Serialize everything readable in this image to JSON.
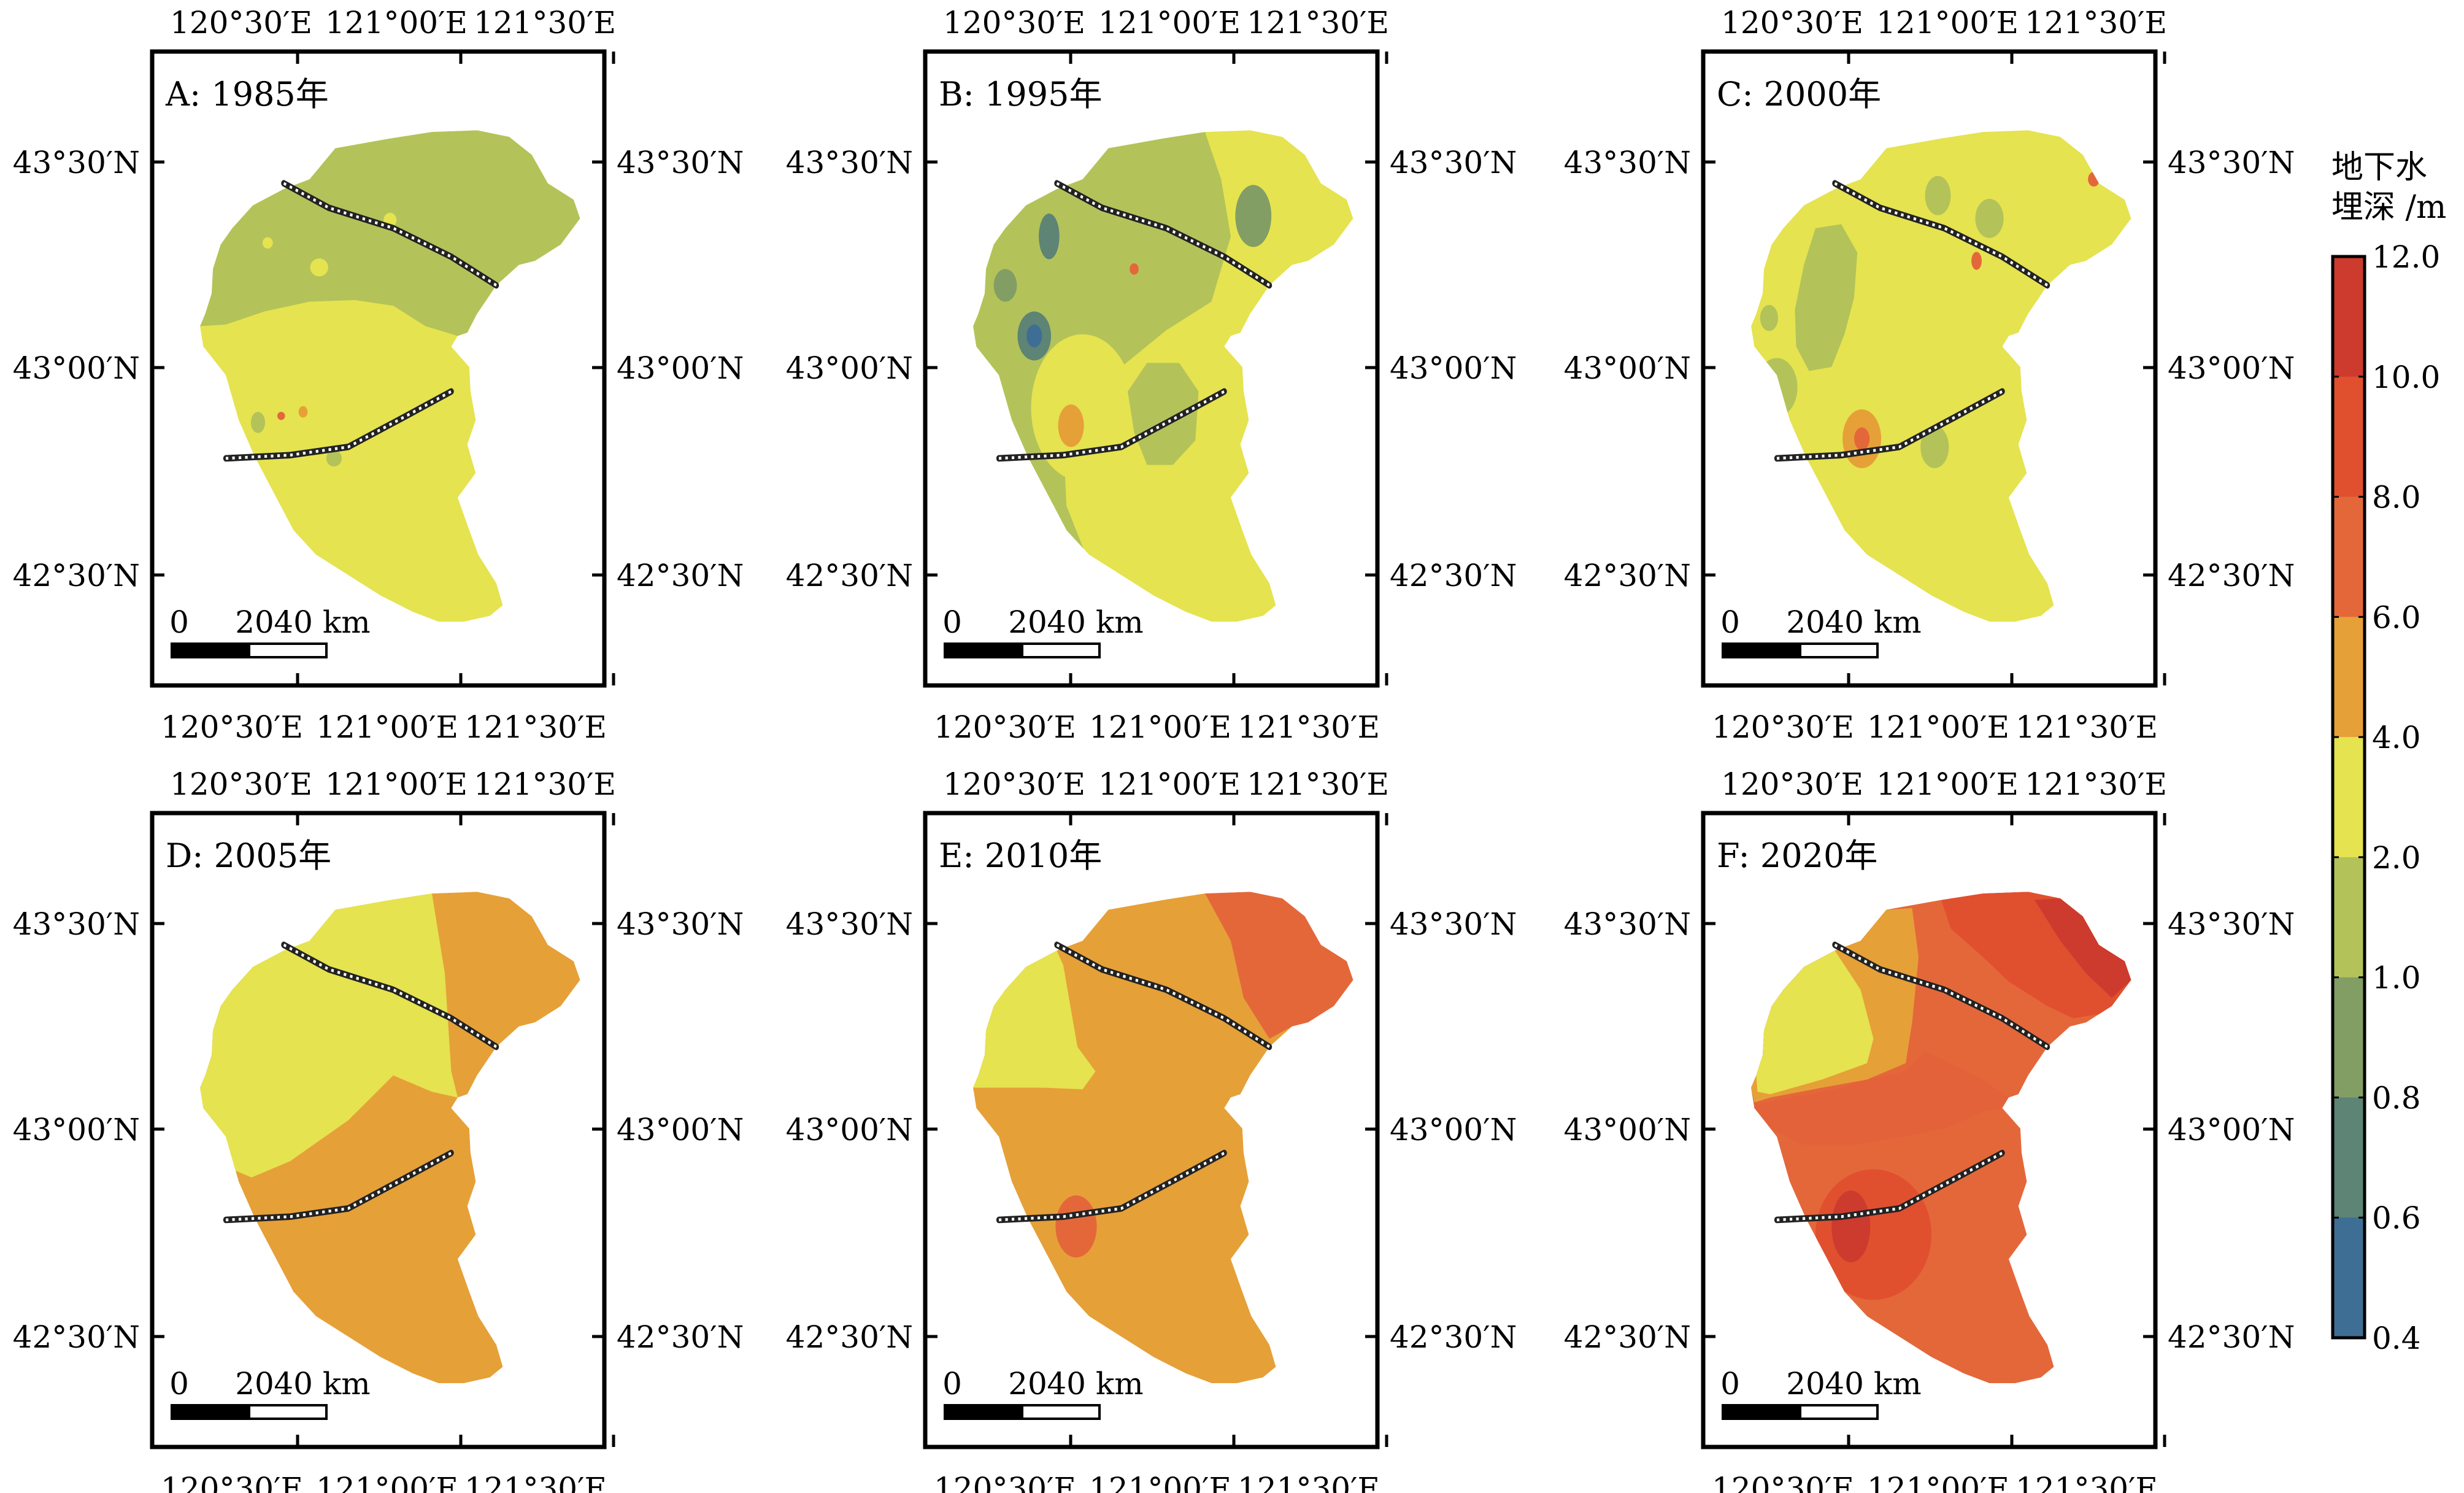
{
  "panels": [
    {
      "id": "A",
      "label": "A: 1985年",
      "fill": "#e5e34f",
      "regions": "A"
    },
    {
      "id": "B",
      "label": "B: 1995年",
      "fill": "#e5e34f",
      "regions": "B"
    },
    {
      "id": "C",
      "label": "C: 2000年",
      "fill": "#e5e34f",
      "regions": "C"
    },
    {
      "id": "D",
      "label": "D: 2005年",
      "fill": "#e6a038",
      "regions": "D"
    },
    {
      "id": "E",
      "label": "E: 2010年",
      "fill": "#e6a038",
      "regions": "E"
    },
    {
      "id": "F",
      "label": "F: 2020年",
      "fill": "#e4623a",
      "regions": "F"
    }
  ],
  "axes": {
    "lon_ticks": [
      "120°30′E",
      "121°00′E",
      "121°30′E"
    ],
    "lat_ticks": [
      "43°30′N",
      "43°00′N",
      "42°30′N"
    ]
  },
  "scale_bar": {
    "labels": [
      "0",
      "20",
      "40 km"
    ]
  },
  "legend": {
    "title_line1": "地下水",
    "title_line2": "埋深 /m",
    "ticks": [
      "12.0",
      "10.0",
      "8.0",
      "6.0",
      "4.0",
      "2.0",
      "1.0",
      "0.8",
      "0.6",
      "0.4"
    ],
    "colors": [
      "#cd3a2e",
      "#e0502f",
      "#e4673a",
      "#e6a038",
      "#e5e34f",
      "#b3c35a",
      "#829e64",
      "#5d8474",
      "#3e6e93"
    ]
  },
  "colors": {
    "depth_0_4_0_6": "#3e6e93",
    "depth_0_6_0_8": "#5d8474",
    "depth_0_8_1_0": "#829e64",
    "depth_1_0_2_0": "#b3c35a",
    "depth_2_0_4_0": "#e5e34f",
    "depth_4_0_6_0": "#e6a038",
    "depth_6_0_8_0": "#e4673a",
    "depth_8_0_10_0": "#e0502f",
    "depth_10_0_12_0": "#cd3a2e"
  }
}
